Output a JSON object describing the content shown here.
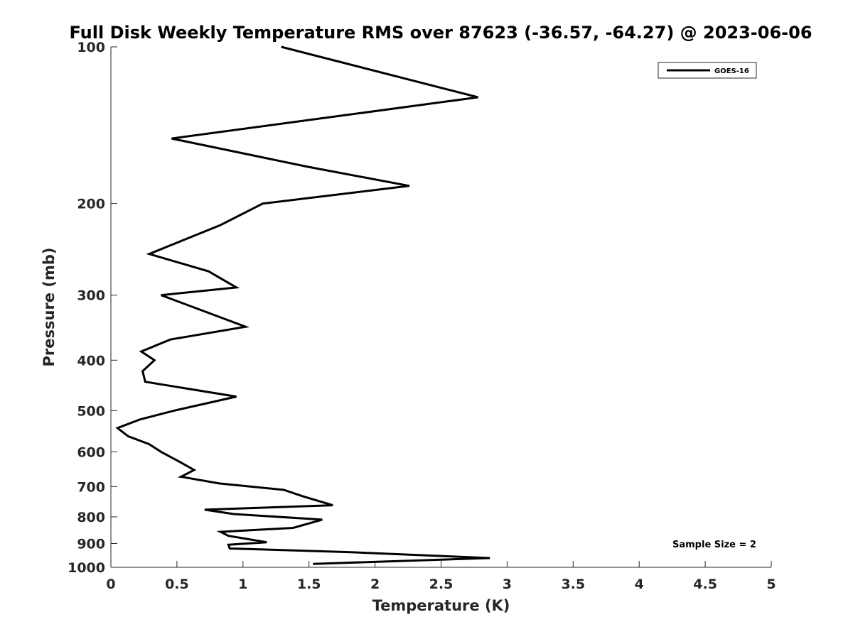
{
  "chart_data": {
    "type": "line",
    "title": "Full Disk Weekly Temperature RMS over 87623 (-36.57, -64.27) @ 2023-06-06",
    "xlabel": "Temperature (K)",
    "ylabel": "Pressure (mb)",
    "xlim": [
      0,
      5
    ],
    "ylim": [
      100,
      1000
    ],
    "y_scale": "log",
    "y_reversed": true,
    "x_ticks": [
      "0",
      "0.5",
      "1",
      "1.5",
      "2",
      "2.5",
      "3",
      "3.5",
      "4",
      "4.5",
      "5"
    ],
    "y_ticks": [
      "100",
      "200",
      "300",
      "400",
      "500",
      "600",
      "700",
      "800",
      "900",
      "1000"
    ],
    "grid": false,
    "legend_position": "top-right",
    "annotation": "Sample Size = 2",
    "series": [
      {
        "name": "GOES-16",
        "color": "#000000",
        "x": [
          1.29,
          2.78,
          0.46,
          1.49,
          2.26,
          1.15,
          0.83,
          0.29,
          0.74,
          0.95,
          0.38,
          1.02,
          0.45,
          0.23,
          0.33,
          0.24,
          0.26,
          0.95,
          0.48,
          0.22,
          0.05,
          0.13,
          0.29,
          0.38,
          0.51,
          0.63,
          0.53,
          0.82,
          1.31,
          1.45,
          1.68,
          0.71,
          0.93,
          1.6,
          1.38,
          0.83,
          0.89,
          1.18,
          0.89,
          0.9,
          1.8,
          2.87,
          1.53
        ],
        "y": [
          100,
          125,
          150,
          170,
          185,
          200,
          220,
          250,
          270,
          290,
          300,
          345,
          365,
          385,
          400,
          420,
          440,
          470,
          500,
          520,
          540,
          560,
          580,
          600,
          625,
          650,
          670,
          690,
          710,
          730,
          760,
          775,
          790,
          810,
          840,
          855,
          870,
          895,
          905,
          920,
          935,
          960,
          985
        ]
      }
    ]
  }
}
